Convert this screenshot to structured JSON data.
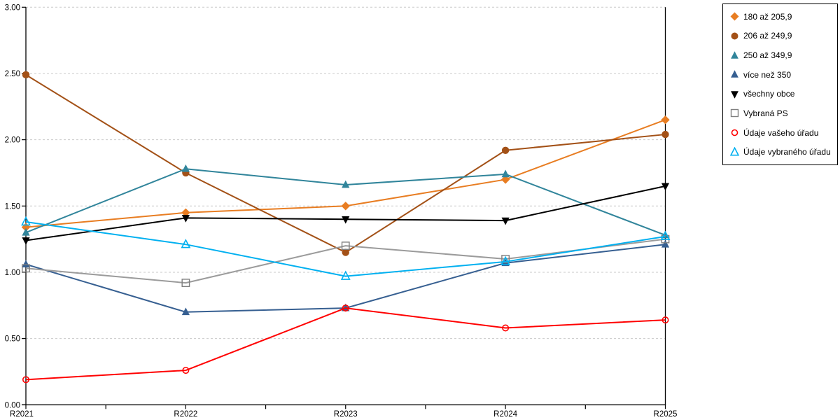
{
  "chart_data": {
    "type": "line",
    "categories": [
      "R2021",
      "R2022",
      "R2023",
      "R2024",
      "R2025"
    ],
    "xlabel": "",
    "ylabel": "",
    "title": "",
    "ylim": [
      0,
      3
    ],
    "y_tick_step": 0.5,
    "y_tick_labels": [
      "0.00",
      "0.50",
      "1.00",
      "1.50",
      "2.00",
      "2.50",
      "3.00"
    ],
    "grid": "horizontal-dashed",
    "gridline_color": "#C9C9C9",
    "axis_color": "#000000",
    "legend_position": "top-right-boxed",
    "series": [
      {
        "name": "180 až 205,9",
        "marker": "diamond",
        "marker_fill": "solid",
        "color": "#E87D22",
        "values": [
          1.34,
          1.45,
          1.5,
          1.7,
          2.15
        ]
      },
      {
        "name": "206 až 249,9",
        "marker": "circle",
        "marker_fill": "solid",
        "color": "#A35117",
        "values": [
          2.49,
          1.75,
          1.15,
          1.92,
          2.04
        ]
      },
      {
        "name": "250 až 349,9",
        "marker": "triangle-up",
        "marker_fill": "solid",
        "color": "#31859B",
        "values": [
          1.3,
          1.78,
          1.66,
          1.74,
          1.28
        ]
      },
      {
        "name": "více než 350",
        "marker": "triangle-up",
        "marker_fill": "solid",
        "color": "#365F91",
        "values": [
          1.06,
          0.7,
          0.73,
          1.07,
          1.21
        ]
      },
      {
        "name": "všechny obce",
        "marker": "triangle-down",
        "marker_fill": "solid",
        "color": "#000000",
        "values": [
          1.24,
          1.41,
          1.4,
          1.39,
          1.65
        ]
      },
      {
        "name": "Vybraná PS",
        "marker": "square",
        "marker_fill": "open",
        "color": "#7F7F7F",
        "line_color": "#9B9B9B",
        "values": [
          1.03,
          0.92,
          1.2,
          1.1,
          1.25
        ]
      },
      {
        "name": "Údaje vašeho úřadu",
        "marker": "circle",
        "marker_fill": "open",
        "color": "#FF0000",
        "values": [
          0.19,
          0.26,
          0.73,
          0.58,
          0.64
        ]
      },
      {
        "name": "Údaje vybraného úřadu",
        "marker": "triangle-up",
        "marker_fill": "open",
        "color": "#00B0F0",
        "values": [
          1.38,
          1.21,
          0.97,
          1.08,
          1.27
        ]
      }
    ]
  }
}
